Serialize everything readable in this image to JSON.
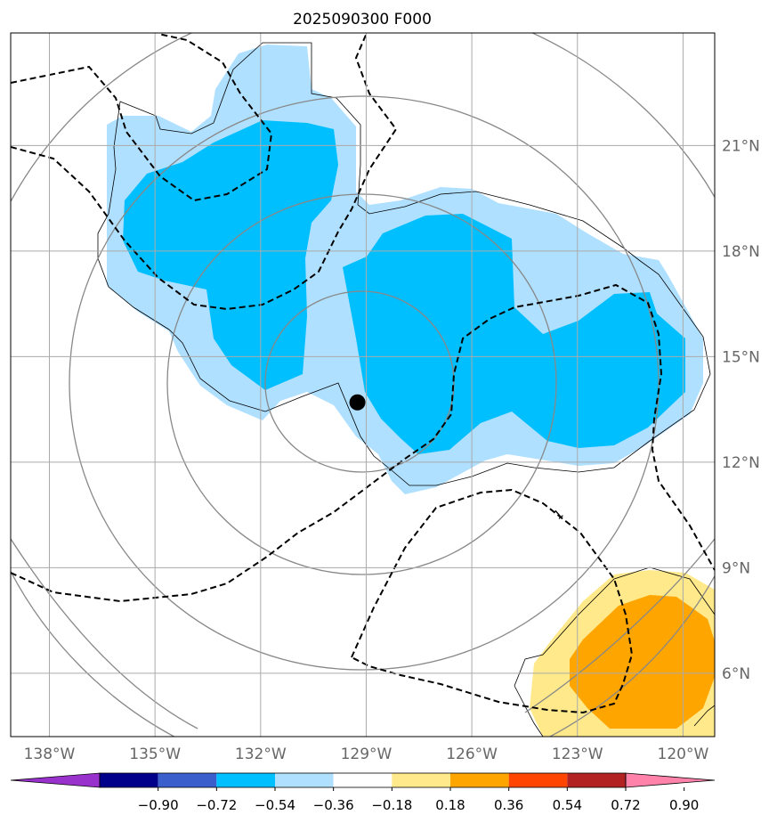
{
  "chart_data": {
    "type": "heatmap",
    "title": "2025090300 F000",
    "x_ticks": [
      "138°W",
      "135°W",
      "132°W",
      "129°W",
      "126°W",
      "123°W",
      "120°W"
    ],
    "x_tick_values": [
      -138,
      -135,
      -132,
      -129,
      -126,
      -123,
      -120
    ],
    "y_ticks": [
      "21°N",
      "18°N",
      "15°N",
      "12°N",
      "9°N",
      "6°N"
    ],
    "y_tick_values": [
      21,
      18,
      15,
      12,
      9,
      6
    ],
    "xlim": [
      -139.1,
      -119.1
    ],
    "ylim": [
      4.2,
      24.2
    ],
    "grid": true,
    "contour_label": "1",
    "center_marker": {
      "lon": -129.25,
      "lat": 13.7
    },
    "colorbar": {
      "orientation": "horizontal",
      "extend": "both",
      "levels": [
        -0.9,
        -0.72,
        -0.54,
        -0.36,
        -0.18,
        0.18,
        0.36,
        0.54,
        0.72,
        0.9
      ],
      "tick_labels": [
        "−0.90",
        "−0.72",
        "−0.54",
        "−0.36",
        "−0.18",
        "0.18",
        "0.36",
        "0.54",
        "0.72",
        "0.90"
      ],
      "colors": [
        "#9932cc",
        "#00008b",
        "#3a5fcd",
        "#00bfff",
        "#b0e0ff",
        "#ffffff",
        "#ffe98a",
        "#ffa500",
        "#ff4500",
        "#b22222",
        "#ff82ab"
      ]
    },
    "filled_regions": [
      {
        "level": "-0.36 to -0.18",
        "color": "#b0e0ff"
      },
      {
        "level": "-0.54 to -0.36",
        "color": "#00bfff"
      },
      {
        "level": "0.18 to 0.36",
        "color": "#ffe98a"
      },
      {
        "level": "0.36 to 0.54",
        "color": "#ffa500"
      }
    ]
  }
}
